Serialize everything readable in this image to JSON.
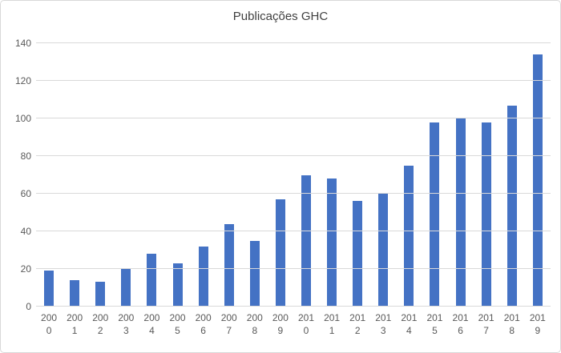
{
  "chart_data": {
    "type": "bar",
    "title": "Publicações GHC",
    "categories": [
      "2000",
      "2001",
      "2002",
      "2003",
      "2004",
      "2005",
      "2006",
      "2007",
      "2008",
      "2009",
      "2010",
      "2011",
      "2012",
      "2013",
      "2014",
      "2015",
      "2016",
      "2017",
      "2018",
      "2019"
    ],
    "values": [
      19,
      14,
      13,
      20,
      28,
      23,
      32,
      44,
      35,
      57,
      70,
      68,
      56,
      60,
      75,
      98,
      100,
      98,
      107,
      134
    ],
    "ylim": [
      0,
      140
    ],
    "yticks": [
      0,
      20,
      40,
      60,
      80,
      100,
      120,
      140
    ],
    "grid": true,
    "legend": "none",
    "xlabel": "",
    "ylabel": ""
  },
  "colors": {
    "bar": "#4472C4",
    "gridline": "#D9D9D9",
    "axis_text": "#595959",
    "title_text": "#404040",
    "frame_border": "#D9D9D9",
    "background": "#FFFFFF"
  }
}
